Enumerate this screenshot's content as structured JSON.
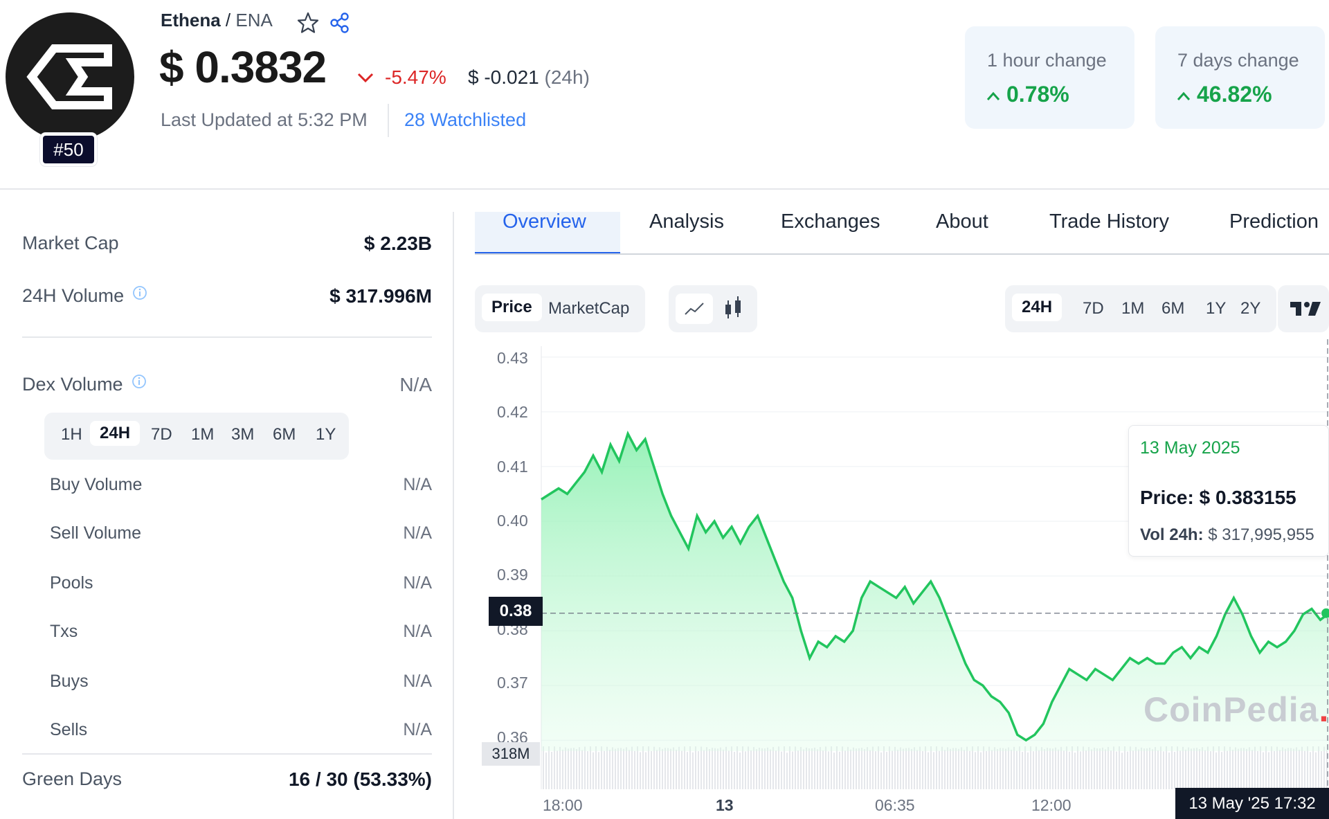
{
  "coin": {
    "name": "Ethena",
    "symbol": "ENA",
    "rank": "#50",
    "price": "$ 0.3832",
    "change_24h_pct": "-5.47%",
    "change_24h_abs": "$ -0.021",
    "change_24h_suffix": "(24h)",
    "last_updated": "Last Updated at 5:32 PM",
    "watchlisted": "28 Watchlisted"
  },
  "change_cards": [
    {
      "label": "1 hour change",
      "value": "0.78%"
    },
    {
      "label": "7 days change",
      "value": "46.82%"
    }
  ],
  "stats": {
    "market_cap": {
      "label": "Market Cap",
      "value": "$ 2.23B"
    },
    "volume_24h": {
      "label": "24H Volume",
      "value": "$ 317.996M"
    },
    "dex_volume": {
      "label": "Dex Volume",
      "value": "N/A"
    },
    "dex_periods": [
      "1H",
      "24H",
      "7D",
      "1M",
      "3M",
      "6M",
      "1Y"
    ],
    "dex_active_period": "24H",
    "dex_rows": [
      {
        "label": "Buy Volume",
        "value": "N/A"
      },
      {
        "label": "Sell Volume",
        "value": "N/A"
      },
      {
        "label": "Pools",
        "value": "N/A"
      },
      {
        "label": "Txs",
        "value": "N/A"
      },
      {
        "label": "Buys",
        "value": "N/A"
      },
      {
        "label": "Sells",
        "value": "N/A"
      }
    ],
    "green_days": {
      "label": "Green Days",
      "value": "16 / 30 (53.33%)"
    }
  },
  "tabs": [
    "Overview",
    "Analysis",
    "Exchanges",
    "About",
    "Trade History",
    "Prediction"
  ],
  "active_tab": "Overview",
  "chart_controls": {
    "data_type": [
      "Price",
      "MarketCap"
    ],
    "active_data_type": "Price",
    "chart_styles": [
      "line-chart-icon",
      "candlestick-icon"
    ],
    "ranges": [
      "24H",
      "7D",
      "1M",
      "6M",
      "1Y",
      "2Y"
    ],
    "active_range": "24H"
  },
  "tooltip": {
    "date": "13 May 2025",
    "price_label": "Price:",
    "price_value": "$ 0.383155",
    "vol_label": "Vol 24h:",
    "vol_value": "$ 317,995,955"
  },
  "watermark": {
    "text": "CoinPedia",
    "dot": "."
  },
  "chart_tags": {
    "current_price": "0.38",
    "volume": "318M",
    "crosshair_time": "13 May '25   17:32"
  },
  "colors": {
    "line": "#22c55e",
    "fill": "#86efac",
    "accent": "#2563eb",
    "down": "#dc2626",
    "up": "#16a34a"
  },
  "chart_data": {
    "type": "area",
    "title": "",
    "xlabel": "",
    "ylabel": "",
    "y_ticks": [
      "0.43",
      "0.42",
      "0.41",
      "0.40",
      "0.39",
      "0.38",
      "0.37",
      "0.36"
    ],
    "x_ticks": [
      "18:00",
      "13",
      "06:35",
      "12:00"
    ],
    "ylim": [
      0.358,
      0.432
    ],
    "series": [
      {
        "values": [
          0.404,
          0.405,
          0.406,
          0.405,
          0.407,
          0.409,
          0.412,
          0.409,
          0.414,
          0.411,
          0.416,
          0.413,
          0.415,
          0.41,
          0.405,
          0.401,
          0.398,
          0.395,
          0.401,
          0.398,
          0.4,
          0.397,
          0.399,
          0.396,
          0.399,
          0.401,
          0.397,
          0.393,
          0.389,
          0.386,
          0.38,
          0.375,
          0.378,
          0.377,
          0.379,
          0.378,
          0.38,
          0.386,
          0.389,
          0.388,
          0.387,
          0.386,
          0.388,
          0.385,
          0.387,
          0.389,
          0.386,
          0.382,
          0.378,
          0.374,
          0.371,
          0.37,
          0.368,
          0.367,
          0.365,
          0.361,
          0.36,
          0.361,
          0.363,
          0.367,
          0.37,
          0.373,
          0.372,
          0.371,
          0.373,
          0.372,
          0.371,
          0.373,
          0.375,
          0.374,
          0.375,
          0.374,
          0.374,
          0.376,
          0.377,
          0.375,
          0.377,
          0.376,
          0.379,
          0.383,
          0.386,
          0.383,
          0.379,
          0.376,
          0.378,
          0.377,
          0.378,
          0.38,
          0.383,
          0.384,
          0.382,
          0.3832
        ]
      }
    ],
    "volume_ylim": [
      0,
      318
    ]
  }
}
